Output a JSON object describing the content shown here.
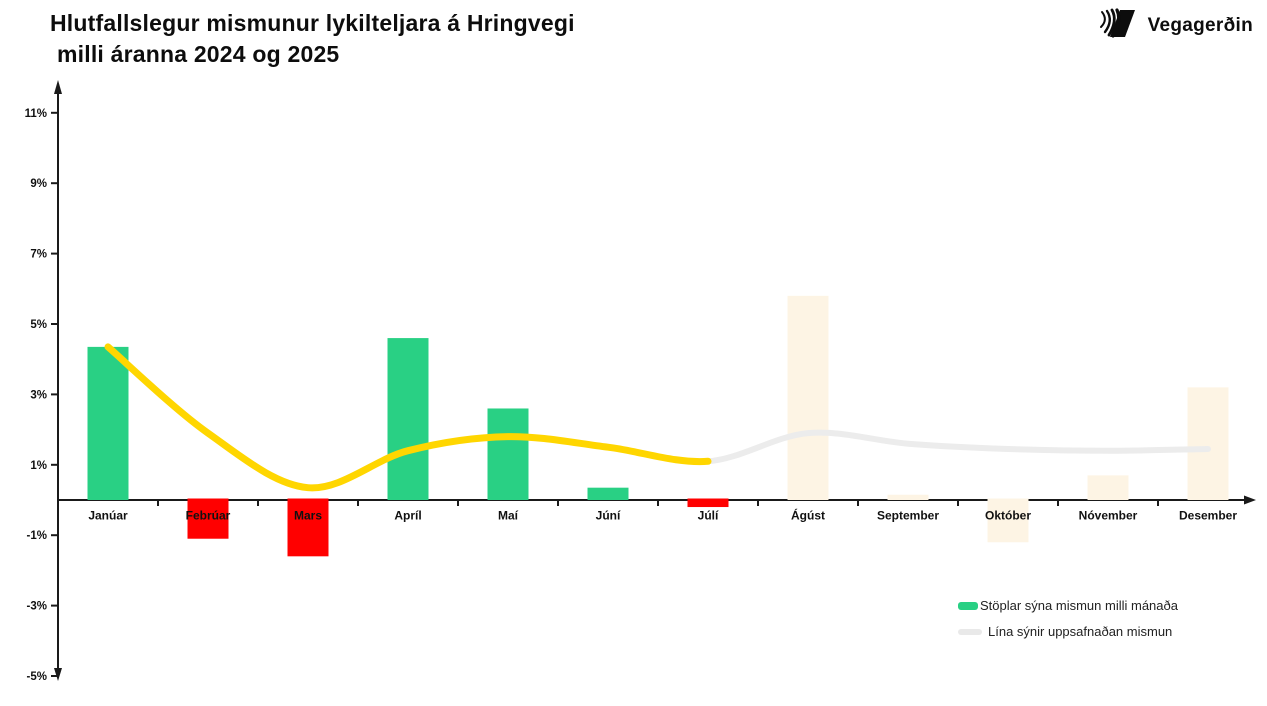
{
  "title": {
    "line1": "Hlutfallslegur mismunur lykilteljara á Hringvegi",
    "line2": "milli áranna 2024 og 2025"
  },
  "logo": {
    "brand": "Vegagerðin"
  },
  "legend": {
    "items": [
      {
        "type": "bar",
        "label": "Stöplar sýna mismun milli mánaða"
      },
      {
        "type": "line",
        "label": "Lína sýnir uppsafnaðan mismun"
      }
    ]
  },
  "colors": {
    "bar_positive": "#29D084",
    "bar_negative": "#FF0000",
    "bar_future": "#FDF4E4",
    "line_actual": "#FFD600",
    "line_future": "#ECECEC",
    "legend_line_swatch": "#E9E9E9",
    "axis": "#1A1A1A",
    "text": "#111111"
  },
  "chart_data": {
    "type": "bar",
    "title": "Hlutfallslegur mismunur lykilteljara á Hringvegi milli áranna 2024 og 2025",
    "categories": [
      "Janúar",
      "Febrúar",
      "Mars",
      "Apríl",
      "Maí",
      "Júní",
      "Júlí",
      "Ágúst",
      "September",
      "Október",
      "Nóvember",
      "Desember"
    ],
    "series": [
      {
        "name": "Stöplar sýna mismun milli mánaða",
        "type": "bar",
        "values": [
          4.35,
          -1.1,
          -1.6,
          4.6,
          2.6,
          0.35,
          -0.2,
          5.8,
          0.15,
          -1.2,
          0.7,
          3.2
        ],
        "styles": [
          "actual",
          "actual",
          "actual",
          "actual",
          "actual",
          "actual",
          "actual",
          "future",
          "future",
          "future",
          "future",
          "future"
        ]
      },
      {
        "name": "Lína sýnir uppsafnaðan mismun",
        "type": "line",
        "values": [
          4.35,
          1.9,
          0.35,
          1.4,
          1.8,
          1.5,
          1.1,
          1.9,
          1.6,
          1.45,
          1.4,
          1.45
        ],
        "actual_through_index": 6
      }
    ],
    "ylim": [
      -5,
      12
    ],
    "ytick_values": [
      11,
      9,
      7,
      5,
      3,
      1,
      -1,
      -3,
      -5
    ],
    "ytick_labels": [
      "11%",
      "9%",
      "7%",
      "5%",
      "3%",
      "1%",
      "-1%",
      "-3%",
      "-5%"
    ],
    "grid": false,
    "legend_position": "bottom-right"
  }
}
